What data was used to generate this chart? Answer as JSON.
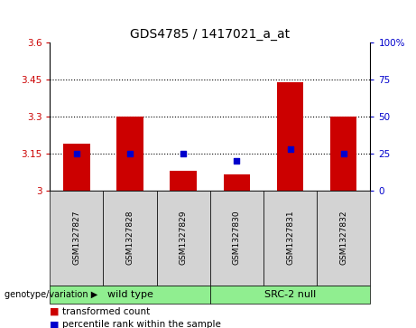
{
  "title": "GDS4785 / 1417021_a_at",
  "samples": [
    "GSM1327827",
    "GSM1327828",
    "GSM1327829",
    "GSM1327830",
    "GSM1327831",
    "GSM1327832"
  ],
  "red_values": [
    3.19,
    3.3,
    3.08,
    3.065,
    3.44,
    3.3
  ],
  "blue_values": [
    25,
    25,
    25,
    20,
    28,
    25
  ],
  "ylim_left": [
    3.0,
    3.6
  ],
  "ylim_right": [
    0,
    100
  ],
  "yticks_left": [
    3.0,
    3.15,
    3.3,
    3.45,
    3.6
  ],
  "ytick_labels_left": [
    "3",
    "3.15",
    "3.3",
    "3.45",
    "3.6"
  ],
  "yticks_right": [
    0,
    25,
    50,
    75,
    100
  ],
  "ytick_labels_right": [
    "0",
    "25",
    "50",
    "75",
    "100%"
  ],
  "hlines": [
    3.15,
    3.3,
    3.45
  ],
  "bar_color": "#cc0000",
  "dot_color": "#0000cc",
  "bar_width": 0.5,
  "group_label": "genotype/variation",
  "wt_label": "wild type",
  "src_label": "SRC-2 null",
  "legend_red": "transformed count",
  "legend_blue": "percentile rank within the sample",
  "background_color": "#ffffff",
  "title_fontsize": 10,
  "tick_fontsize": 7.5,
  "sample_fontsize": 6.5,
  "group_fontsize": 8,
  "legend_fontsize": 7.5
}
